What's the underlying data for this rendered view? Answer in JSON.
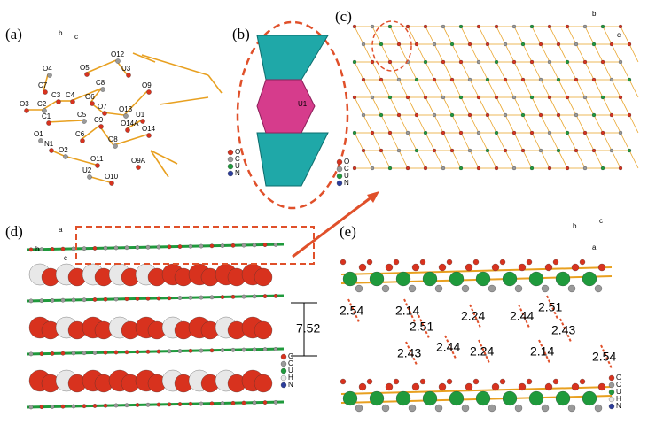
{
  "panels": {
    "a": {
      "label": "(a)",
      "axes": [
        "b",
        "c"
      ],
      "atoms": [
        "O4",
        "C7",
        "O5",
        "O12",
        "U3",
        "O3",
        "C2",
        "C3",
        "C4",
        "C8",
        "O6",
        "O7",
        "O13",
        "O9",
        "C1",
        "C5",
        "O14A",
        "U1",
        "O1",
        "C6",
        "C9",
        "O8",
        "O14",
        "N1",
        "O2",
        "O11",
        "O9A",
        "U2",
        "O10"
      ],
      "legend": [
        "O",
        "C",
        "U",
        "N"
      ]
    },
    "b": {
      "label": "(b)",
      "atoms": [
        "U1"
      ]
    },
    "c": {
      "label": "(c)",
      "axes": [
        "b",
        "c"
      ],
      "legend": [
        "O",
        "C",
        "U",
        "N"
      ]
    },
    "d": {
      "label": "(d)",
      "axes": [
        "a",
        "b",
        "c"
      ],
      "spacing": "7.52",
      "legend": [
        "O",
        "C",
        "U",
        "H",
        "N"
      ]
    },
    "e": {
      "label": "(e)",
      "axes": [
        "b",
        "c",
        "a"
      ],
      "distances": [
        "2.54",
        "2.14",
        "2.24",
        "2.44",
        "2.51",
        "2.51",
        "2.43",
        "2.43",
        "2.44",
        "2.24",
        "2.14",
        "2.54"
      ],
      "legend": [
        "O",
        "C",
        "U",
        "H",
        "N"
      ]
    }
  }
}
